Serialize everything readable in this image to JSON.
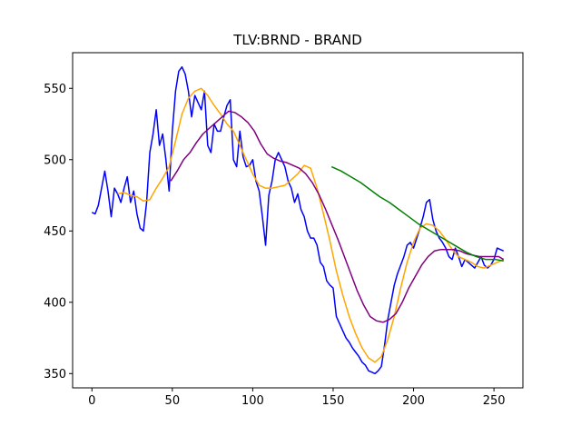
{
  "chart_data": {
    "type": "line",
    "title": "TLV:BRND - BRAND",
    "xlabel": "",
    "ylabel": "",
    "xlim": [
      -12,
      268
    ],
    "ylim": [
      340,
      575
    ],
    "xticks": [
      0,
      50,
      100,
      150,
      200,
      250
    ],
    "yticks": [
      350,
      400,
      450,
      500,
      550
    ],
    "grid": false,
    "series": [
      {
        "color": "#0000ff",
        "x": [
          0,
          2,
          4,
          6,
          8,
          10,
          12,
          14,
          16,
          18,
          20,
          22,
          24,
          26,
          28,
          30,
          32,
          34,
          36,
          38,
          40,
          42,
          44,
          46,
          48,
          50,
          52,
          54,
          56,
          58,
          60,
          62,
          64,
          66,
          68,
          70,
          72,
          74,
          76,
          78,
          80,
          82,
          84,
          86,
          88,
          90,
          92,
          94,
          96,
          98,
          100,
          102,
          104,
          106,
          108,
          110,
          112,
          114,
          116,
          118,
          120,
          122,
          124,
          126,
          128,
          130,
          132,
          134,
          136,
          138,
          140,
          142,
          144,
          146,
          148,
          150,
          152,
          154,
          156,
          158,
          160,
          162,
          164,
          166,
          168,
          170,
          172,
          174,
          176,
          178,
          180,
          182,
          184,
          186,
          188,
          190,
          192,
          194,
          196,
          198,
          200,
          202,
          204,
          206,
          208,
          210,
          212,
          214,
          216,
          218,
          220,
          222,
          224,
          226,
          228,
          230,
          232,
          234,
          236,
          238,
          240,
          242,
          244,
          246,
          248,
          250,
          252,
          254,
          256
        ],
        "y": [
          463,
          462,
          468,
          480,
          492,
          478,
          460,
          480,
          476,
          470,
          480,
          488,
          470,
          478,
          462,
          452,
          450,
          470,
          505,
          518,
          535,
          510,
          518,
          500,
          478,
          520,
          548,
          562,
          565,
          560,
          548,
          530,
          545,
          540,
          535,
          548,
          510,
          505,
          525,
          520,
          520,
          530,
          538,
          542,
          500,
          495,
          520,
          502,
          495,
          496,
          500,
          485,
          478,
          460,
          440,
          475,
          485,
          500,
          505,
          500,
          495,
          485,
          480,
          470,
          476,
          465,
          460,
          450,
          445,
          445,
          440,
          428,
          425,
          415,
          412,
          410,
          390,
          385,
          380,
          375,
          372,
          368,
          365,
          362,
          358,
          356,
          352,
          351,
          350,
          352,
          355,
          370,
          388,
          400,
          412,
          420,
          426,
          432,
          440,
          442,
          438,
          445,
          452,
          460,
          470,
          472,
          458,
          450,
          445,
          442,
          438,
          432,
          430,
          438,
          432,
          425,
          430,
          428,
          426,
          424,
          428,
          432,
          426,
          424,
          426,
          430,
          438,
          437,
          436
        ]
      },
      {
        "color": "#ffa500",
        "x": [
          16,
          20,
          24,
          28,
          32,
          36,
          40,
          44,
          48,
          52,
          56,
          60,
          64,
          68,
          72,
          76,
          80,
          84,
          88,
          92,
          96,
          100,
          104,
          108,
          112,
          116,
          120,
          124,
          128,
          132,
          136,
          140,
          144,
          148,
          152,
          156,
          160,
          164,
          168,
          172,
          176,
          180,
          184,
          188,
          192,
          196,
          200,
          204,
          208,
          212,
          216,
          220,
          224,
          228,
          232,
          236,
          240,
          244,
          248,
          252,
          256
        ],
        "y": [
          476,
          477,
          475,
          474,
          471,
          472,
          480,
          487,
          495,
          513,
          532,
          543,
          548,
          550,
          545,
          538,
          532,
          525,
          520,
          510,
          500,
          490,
          482,
          480,
          480,
          481,
          482,
          486,
          490,
          496,
          494,
          480,
          462,
          443,
          422,
          405,
          390,
          378,
          368,
          361,
          358,
          362,
          374,
          390,
          410,
          428,
          442,
          452,
          455,
          454,
          450,
          444,
          437,
          432,
          430,
          428,
          425,
          424,
          426,
          428,
          430
        ]
      },
      {
        "color": "#800080",
        "x": [
          49,
          53,
          57,
          61,
          65,
          69,
          73,
          77,
          81,
          85,
          89,
          93,
          97,
          101,
          105,
          109,
          113,
          117,
          121,
          125,
          129,
          133,
          137,
          141,
          145,
          149,
          153,
          157,
          161,
          165,
          169,
          173,
          177,
          181,
          185,
          189,
          193,
          197,
          201,
          205,
          209,
          213,
          217,
          221,
          225,
          229,
          233,
          237,
          241,
          245,
          249,
          253,
          256
        ],
        "y": [
          485,
          492,
          500,
          505,
          512,
          518,
          522,
          526,
          530,
          534,
          533,
          530,
          526,
          520,
          511,
          504,
          501,
          499,
          498,
          496,
          494,
          490,
          484,
          476,
          466,
          455,
          444,
          432,
          420,
          408,
          398,
          390,
          387,
          386,
          388,
          392,
          400,
          410,
          418,
          426,
          432,
          436,
          437,
          437,
          437,
          436,
          434,
          433,
          432,
          432,
          432,
          432,
          430
        ]
      },
      {
        "color": "#008000",
        "x": [
          149,
          155,
          161,
          167,
          173,
          179,
          185,
          191,
          197,
          203,
          209,
          215,
          221,
          227,
          233,
          239,
          245,
          251,
          256
        ],
        "y": [
          495,
          492,
          488,
          484,
          479,
          474,
          470,
          465,
          460,
          455,
          451,
          447,
          443,
          439,
          435,
          432,
          430,
          430,
          429
        ]
      }
    ]
  }
}
